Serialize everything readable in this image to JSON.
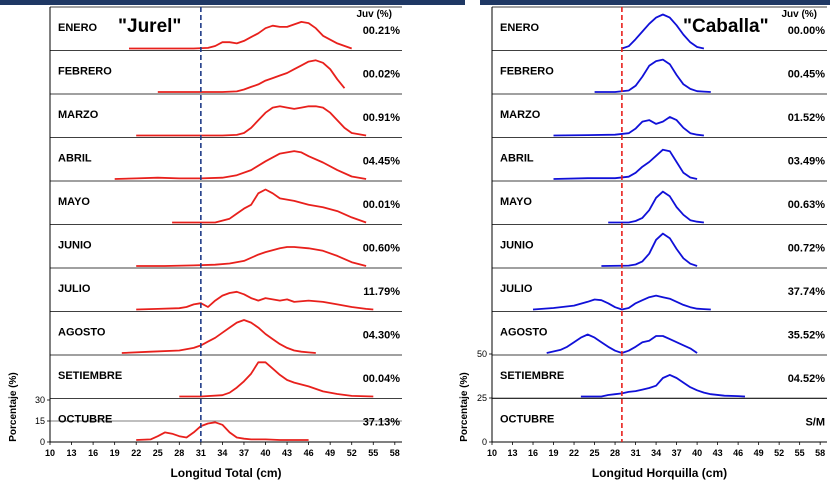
{
  "chart_data": [
    {
      "type": "line",
      "title": "\"Jurel\"",
      "xlabel": "Longitud Total (cm)",
      "ylabel": "Porcentaje (%)",
      "header": "Juv (%)",
      "line_color": "#e8201c",
      "ref_line": {
        "x": 31,
        "color": "#1f3c88",
        "style": "dashed"
      },
      "xlim": [
        10,
        59
      ],
      "x_ticks": [
        10,
        13,
        16,
        19,
        22,
        25,
        28,
        31,
        34,
        37,
        40,
        43,
        46,
        49,
        52,
        55,
        58
      ],
      "y_ticks": [
        0,
        15,
        30
      ],
      "y_max": 30,
      "panels": [
        {
          "month": "ENERO",
          "juv": "00.21%",
          "x": [
            21,
            24,
            27,
            30,
            32,
            33,
            34,
            35,
            36,
            37,
            38,
            39,
            40,
            41,
            42,
            43,
            44,
            45,
            46,
            47,
            48,
            50,
            52
          ],
          "y": [
            0,
            0,
            0,
            0,
            0.5,
            2,
            5,
            5,
            4,
            6,
            9,
            12,
            16,
            18,
            17,
            17,
            19,
            21,
            20,
            16,
            10,
            4,
            0
          ]
        },
        {
          "month": "FEBRERO",
          "juv": "00.02%",
          "x": [
            25,
            28,
            31,
            34,
            36,
            37,
            38,
            39,
            40,
            41,
            42,
            43,
            44,
            45,
            46,
            47,
            48,
            49,
            50,
            51
          ],
          "y": [
            0,
            0,
            0,
            0,
            0.5,
            2,
            4,
            6,
            9,
            11,
            13,
            15,
            18,
            21,
            24,
            25,
            23,
            18,
            10,
            3
          ]
        },
        {
          "month": "MARZO",
          "juv": "00.91%",
          "x": [
            22,
            26,
            30,
            34,
            36,
            37,
            38,
            39,
            40,
            41,
            42,
            43,
            44,
            45,
            46,
            47,
            48,
            49,
            50,
            51,
            52,
            54
          ],
          "y": [
            0,
            0,
            0,
            0,
            0.5,
            2,
            6,
            12,
            18,
            22,
            23,
            22,
            21,
            22,
            23,
            23,
            22,
            18,
            12,
            6,
            2,
            0
          ]
        },
        {
          "month": "ABRIL",
          "juv": "04.45%",
          "x": [
            19,
            22,
            25,
            28,
            31,
            34,
            36,
            38,
            40,
            42,
            44,
            45,
            46,
            48,
            50,
            52,
            54
          ],
          "y": [
            0,
            0.5,
            1,
            0.5,
            0.5,
            1,
            3,
            7,
            14,
            20,
            22,
            21,
            18,
            13,
            7,
            2,
            0
          ]
        },
        {
          "month": "MAYO",
          "juv": "00.01%",
          "x": [
            27,
            30,
            33,
            35,
            36,
            37,
            38,
            39,
            40,
            41,
            42,
            44,
            46,
            48,
            50,
            52,
            54
          ],
          "y": [
            0,
            0,
            0,
            3,
            7,
            11,
            14,
            23,
            26,
            23,
            19,
            17,
            14,
            12,
            9,
            4,
            0
          ]
        },
        {
          "month": "JUNIO",
          "juv": "00.60%",
          "x": [
            22,
            26,
            30,
            33,
            35,
            37,
            39,
            40,
            42,
            43,
            44,
            46,
            48,
            50,
            52,
            54
          ],
          "y": [
            0,
            0,
            0.5,
            1,
            2,
            4,
            9,
            11,
            14,
            15,
            15,
            14,
            12,
            8,
            3,
            0
          ]
        },
        {
          "month": "JULIO",
          "juv": "11.79%",
          "x": [
            22,
            25,
            28,
            29,
            30,
            31,
            32,
            33,
            34,
            35,
            36,
            37,
            38,
            39,
            40,
            41,
            42,
            43,
            44,
            46,
            48,
            50,
            52,
            54,
            55
          ],
          "y": [
            0,
            0.5,
            1,
            2,
            4,
            5,
            2,
            7,
            11,
            13,
            14,
            12,
            9,
            7,
            9,
            8,
            7,
            8,
            6,
            7,
            6,
            4,
            2,
            0.5,
            0
          ]
        },
        {
          "month": "AGOSTO",
          "juv": "04.30%",
          "x": [
            20,
            24,
            28,
            30,
            31,
            32,
            33,
            34,
            35,
            36,
            37,
            38,
            39,
            40,
            41,
            42,
            43,
            44,
            45,
            46,
            47
          ],
          "y": [
            0,
            1,
            2,
            4,
            6,
            9,
            12,
            16,
            20,
            24,
            26,
            24,
            20,
            15,
            11,
            7,
            4,
            2,
            1,
            0.5,
            0
          ]
        },
        {
          "month": "SETIEMBRE",
          "juv": "00.04%",
          "x": [
            28,
            31,
            34,
            35,
            36,
            37,
            38,
            39,
            40,
            41,
            42,
            43,
            44,
            46,
            48,
            50,
            52,
            55
          ],
          "y": [
            0,
            0,
            1,
            3,
            7,
            12,
            18,
            27,
            27,
            22,
            17,
            13,
            11,
            8,
            4,
            2,
            0.5,
            0
          ]
        },
        {
          "month": "OCTUBRE",
          "juv": "37.13%",
          "x": [
            22,
            24,
            25,
            26,
            27,
            28,
            29,
            30,
            31,
            32,
            33,
            34,
            35,
            36,
            37,
            38,
            40,
            42,
            44,
            46
          ],
          "y": [
            0,
            0.5,
            3,
            6,
            5,
            3,
            2,
            6,
            11,
            13,
            14,
            12,
            6,
            2,
            1,
            0.5,
            0.5,
            0,
            0,
            0
          ]
        }
      ]
    },
    {
      "type": "line",
      "title": "\"Caballa\"",
      "xlabel": "Longitud Horquilla (cm)",
      "ylabel": "Porcentaje (%)",
      "header": "Juv (%)",
      "line_color": "#1010d8",
      "ref_line": {
        "x": 29,
        "color": "#e8201c",
        "style": "dashed"
      },
      "xlim": [
        10,
        59
      ],
      "x_ticks": [
        10,
        13,
        16,
        19,
        22,
        25,
        28,
        31,
        34,
        37,
        40,
        43,
        46,
        49,
        52,
        55,
        58
      ],
      "y_ticks": [
        0,
        25,
        50
      ],
      "y_max": 50,
      "panels": [
        {
          "month": "ENERO",
          "juv": "00.00%",
          "x": [
            29,
            30,
            31,
            32,
            33,
            34,
            35,
            36,
            37,
            38,
            39,
            40,
            41
          ],
          "y": [
            0,
            3,
            12,
            22,
            32,
            40,
            44,
            40,
            30,
            18,
            8,
            2,
            0
          ]
        },
        {
          "month": "FEBRERO",
          "juv": "00.45%",
          "x": [
            25,
            28,
            30,
            31,
            32,
            33,
            34,
            35,
            36,
            37,
            38,
            39,
            40,
            41,
            42
          ],
          "y": [
            0,
            0,
            2,
            8,
            20,
            34,
            40,
            42,
            36,
            22,
            10,
            4,
            1,
            0.5,
            0
          ]
        },
        {
          "month": "MARZO",
          "juv": "01.52%",
          "x": [
            19,
            24,
            28,
            30,
            31,
            32,
            33,
            34,
            35,
            36,
            37,
            38,
            39,
            40,
            41
          ],
          "y": [
            0,
            0.5,
            1,
            3,
            9,
            18,
            20,
            15,
            18,
            24,
            20,
            10,
            3,
            1,
            0
          ]
        },
        {
          "month": "ABRIL",
          "juv": "03.49%",
          "x": [
            19,
            24,
            28,
            30,
            31,
            32,
            33,
            34,
            35,
            36,
            37,
            38,
            39,
            40
          ],
          "y": [
            0,
            1,
            1,
            3,
            8,
            16,
            22,
            30,
            38,
            36,
            22,
            8,
            2,
            0
          ]
        },
        {
          "month": "MAYO",
          "juv": "00.63%",
          "x": [
            27,
            30,
            31,
            32,
            33,
            34,
            35,
            36,
            37,
            38,
            39,
            40,
            41
          ],
          "y": [
            0,
            0,
            2,
            6,
            16,
            32,
            40,
            34,
            20,
            10,
            3,
            1,
            0
          ]
        },
        {
          "month": "JUNIO",
          "juv": "00.72%",
          "x": [
            26,
            30,
            31,
            32,
            33,
            34,
            35,
            36,
            37,
            38,
            39,
            40
          ],
          "y": [
            0,
            0.5,
            2,
            6,
            16,
            34,
            42,
            36,
            22,
            10,
            3,
            0
          ]
        },
        {
          "month": "JULIO",
          "juv": "37.74%",
          "x": [
            16,
            19,
            22,
            24,
            25,
            26,
            27,
            28,
            29,
            30,
            31,
            32,
            33,
            34,
            35,
            36,
            37,
            38,
            39,
            40,
            41,
            42
          ],
          "y": [
            0,
            2,
            5,
            10,
            13,
            12,
            8,
            3,
            0,
            2,
            8,
            12,
            16,
            18,
            16,
            14,
            10,
            6,
            3,
            1,
            0.5,
            0
          ]
        },
        {
          "month": "AGOSTO",
          "juv": "35.52%",
          "x": [
            18,
            20,
            21,
            22,
            23,
            24,
            25,
            26,
            27,
            28,
            29,
            30,
            31,
            32,
            33,
            34,
            35,
            36,
            37,
            38,
            39,
            40
          ],
          "y": [
            0,
            4,
            8,
            14,
            20,
            24,
            20,
            14,
            8,
            3,
            0,
            3,
            8,
            14,
            16,
            22,
            22,
            18,
            14,
            10,
            6,
            0
          ]
        },
        {
          "month": "SETIEMBRE",
          "juv": "04.52%",
          "x": [
            23,
            26,
            27,
            28,
            29,
            30,
            31,
            32,
            33,
            34,
            35,
            36,
            37,
            38,
            39,
            40,
            41,
            42,
            44,
            46,
            47
          ],
          "y": [
            0,
            0,
            2,
            3,
            4,
            6,
            7,
            9,
            11,
            14,
            24,
            28,
            24,
            18,
            12,
            8,
            5,
            3,
            1,
            0.5,
            0
          ]
        },
        {
          "month": "OCTUBRE",
          "juv": "S/M",
          "x": [],
          "y": []
        }
      ]
    }
  ]
}
